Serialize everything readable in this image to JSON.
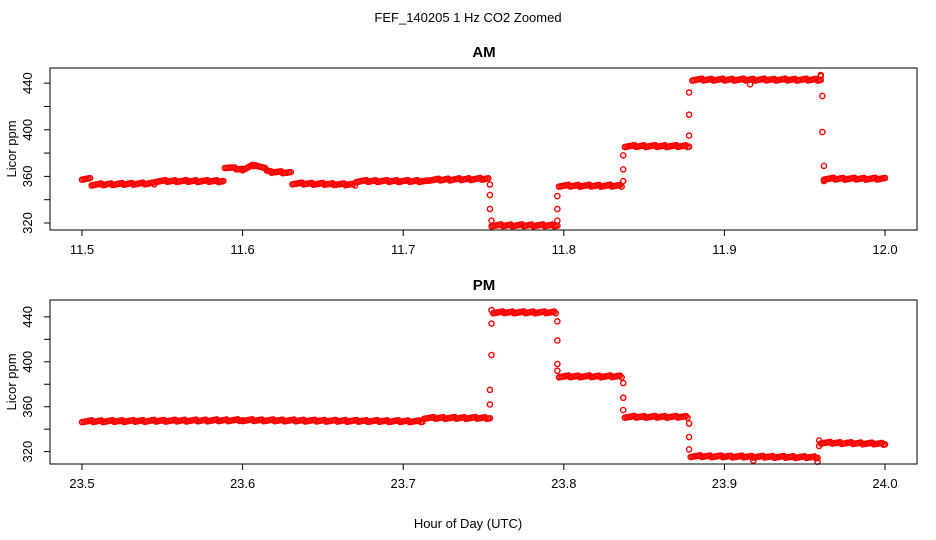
{
  "figure": {
    "title": "FEF_140205  1 Hz CO2 Zoomed",
    "xlabel": "Hour of Day (UTC)"
  },
  "chart_data": [
    {
      "type": "scatter",
      "title": "AM",
      "xlabel": "",
      "ylabel": "Licor ppm",
      "xlim": [
        11.5,
        12.0
      ],
      "ylim": [
        314,
        453
      ],
      "xticks": [
        "11.5",
        "11.6",
        "11.7",
        "11.8",
        "11.9",
        "12.0"
      ],
      "yticks": [
        "320",
        "360",
        "400",
        "440"
      ],
      "grid": false,
      "marker_color": "#ff0000",
      "series": [
        {
          "segments": [
            {
              "x0": 11.5,
              "y0": 358,
              "x1": 11.505,
              "y1": 358
            },
            {
              "x0": 11.506,
              "y0": 353,
              "x1": 11.545,
              "y1": 354
            },
            {
              "x0": 11.546,
              "y0": 356,
              "x1": 11.588,
              "y1": 356
            },
            {
              "x0": 11.589,
              "y0": 368,
              "x1": 11.6,
              "y1": 366
            },
            {
              "x0": 11.6,
              "y0": 366,
              "x1": 11.608,
              "y1": 370
            },
            {
              "x0": 11.608,
              "y0": 370,
              "x1": 11.618,
              "y1": 364
            },
            {
              "x0": 11.618,
              "y0": 364,
              "x1": 11.63,
              "y1": 363
            },
            {
              "x0": 11.631,
              "y0": 354,
              "x1": 11.67,
              "y1": 353
            },
            {
              "x0": 11.671,
              "y0": 356,
              "x1": 11.715,
              "y1": 356
            },
            {
              "x0": 11.716,
              "y0": 357,
              "x1": 11.753,
              "y1": 358
            },
            {
              "x0": 11.755,
              "y0": 318,
              "x1": 11.796,
              "y1": 318
            },
            {
              "x0": 11.797,
              "y0": 352,
              "x1": 11.836,
              "y1": 352
            },
            {
              "x0": 11.838,
              "y0": 386,
              "x1": 11.878,
              "y1": 386
            },
            {
              "x0": 11.88,
              "y0": 443,
              "x1": 11.96,
              "y1": 443
            },
            {
              "x0": 11.962,
              "y0": 358,
              "x1": 12.0,
              "y1": 358
            }
          ],
          "points": [
            [
              11.754,
              353
            ],
            [
              11.754,
              344
            ],
            [
              11.754,
              332
            ],
            [
              11.755,
              322
            ],
            [
              11.796,
              322
            ],
            [
              11.796,
              332
            ],
            [
              11.796,
              343
            ],
            [
              11.837,
              356
            ],
            [
              11.837,
              366
            ],
            [
              11.837,
              378
            ],
            [
              11.878,
              395
            ],
            [
              11.878,
              413
            ],
            [
              11.878,
              432
            ],
            [
              11.916,
              439
            ],
            [
              11.96,
              446
            ],
            [
              11.96,
              447
            ],
            [
              11.961,
              429
            ],
            [
              11.961,
              398
            ],
            [
              11.962,
              369
            ],
            [
              11.962,
              356
            ]
          ]
        }
      ]
    },
    {
      "type": "scatter",
      "title": "PM",
      "xlabel": "Hour of Day (UTC)",
      "ylabel": "Licor ppm",
      "xlim": [
        23.5,
        24.0
      ],
      "ylim": [
        309,
        455
      ],
      "xticks": [
        "23.5",
        "23.6",
        "23.7",
        "23.8",
        "23.9",
        "24.0"
      ],
      "yticks": [
        "320",
        "360",
        "400",
        "440"
      ],
      "grid": false,
      "marker_color": "#ff0000",
      "series": [
        {
          "segments": [
            {
              "x0": 23.5,
              "y0": 347,
              "x1": 23.6,
              "y1": 348
            },
            {
              "x0": 23.6,
              "y0": 348,
              "x1": 23.712,
              "y1": 347
            },
            {
              "x0": 23.713,
              "y0": 350,
              "x1": 23.754,
              "y1": 350
            },
            {
              "x0": 23.756,
              "y0": 444,
              "x1": 23.795,
              "y1": 444
            },
            {
              "x0": 23.797,
              "y0": 387,
              "x1": 23.836,
              "y1": 387
            },
            {
              "x0": 23.838,
              "y0": 351,
              "x1": 23.877,
              "y1": 351
            },
            {
              "x0": 23.879,
              "y0": 316,
              "x1": 23.958,
              "y1": 315
            },
            {
              "x0": 23.96,
              "y0": 328,
              "x1": 24.0,
              "y1": 327
            }
          ],
          "points": [
            [
              23.754,
              362
            ],
            [
              23.754,
              375
            ],
            [
              23.755,
              406
            ],
            [
              23.755,
              434
            ],
            [
              23.755,
              446
            ],
            [
              23.796,
              436
            ],
            [
              23.796,
              419
            ],
            [
              23.796,
              398
            ],
            [
              23.796,
              392
            ],
            [
              23.837,
              381
            ],
            [
              23.837,
              368
            ],
            [
              23.837,
              357
            ],
            [
              23.878,
              345
            ],
            [
              23.878,
              333
            ],
            [
              23.878,
              322
            ],
            [
              23.918,
              312
            ],
            [
              23.958,
              311
            ],
            [
              23.959,
              325
            ],
            [
              23.959,
              330
            ]
          ]
        }
      ]
    }
  ]
}
